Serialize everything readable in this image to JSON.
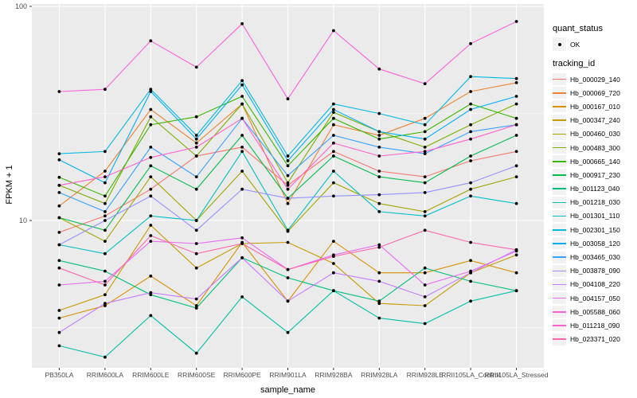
{
  "figure": {
    "background": "#FFFFFF",
    "panel_bg": "#EBEBEB",
    "grid_color": "#FFFFFF",
    "tick_color": "#333333",
    "tick_label_color": "#4D4D4D",
    "legend_key_bg": "#F2F2F2",
    "point_color": "#000000"
  },
  "legend": {
    "quant_status_title": "quant_status",
    "quant_status_items": [
      {
        "label": "OK",
        "shape": "point"
      }
    ],
    "tracking_id_title": "tracking_id"
  },
  "chart_data": {
    "type": "line",
    "title": "",
    "x_axis_label": "sample_name",
    "y_axis_label": "FPKM + 1",
    "y_scale": "log10",
    "y_major_ticks": [
      100,
      10
    ],
    "y_minor_ticks": [
      31.62,
      3.162
    ],
    "y_range_approx": [
      2.05,
      103
    ],
    "grid": true,
    "legend_position": "right",
    "point_marker": {
      "shape": "circle",
      "color": "#000000"
    },
    "categories": [
      "PB350LA",
      "RRIM600LA",
      "RRIM600LE",
      "RRIM600SE",
      "RRIM600PE",
      "RRIM901LA",
      "RRIM928BA",
      "RRIM928LA",
      "RRIM928LE",
      "RRII105LA_Control",
      "RRII105LA_Stressed"
    ],
    "series": [
      {
        "name": "Hb_000029_140",
        "color": "#F8766D",
        "values": [
          8.8,
          10.5,
          14,
          20,
          22,
          14.6,
          21,
          17,
          16,
          19,
          21
        ]
      },
      {
        "name": "Hb_000069_720",
        "color": "#EA8331",
        "values": [
          11.7,
          17,
          33,
          23,
          35,
          12,
          28,
          25,
          30,
          40,
          44
        ]
      },
      {
        "name": "Hb_000167_010",
        "color": "#D89000",
        "values": [
          3.5,
          4.0,
          5.5,
          4.0,
          7.9,
          4.2,
          8.0,
          5.7,
          5.7,
          6.5,
          5.7
        ]
      },
      {
        "name": "Hb_000347_240",
        "color": "#C49A00",
        "values": [
          3.8,
          4.5,
          9.5,
          6.0,
          7.8,
          7.9,
          6.3,
          4.1,
          4.0,
          5.7,
          6.9
        ]
      },
      {
        "name": "Hb_000460_030",
        "color": "#A3A500",
        "values": [
          10.3,
          8.0,
          16,
          10,
          17,
          8.9,
          15,
          12,
          11,
          14,
          16
        ]
      },
      {
        "name": "Hb_000483_300",
        "color": "#7CAE00",
        "values": [
          14.6,
          12,
          30.5,
          20,
          35,
          15,
          32,
          26,
          22,
          28,
          35
        ]
      },
      {
        "name": "Hb_000665_140",
        "color": "#39B600",
        "values": [
          15.9,
          13,
          28,
          30.5,
          38,
          18,
          30,
          24,
          26,
          35,
          30
        ]
      },
      {
        "name": "Hb_000917_230",
        "color": "#00BB4E",
        "values": [
          10.3,
          9.0,
          18,
          14,
          25,
          12.7,
          20,
          16,
          15,
          20,
          25
        ]
      },
      {
        "name": "Hb_001123_040",
        "color": "#00BF7D",
        "values": [
          6.5,
          5.8,
          4.5,
          3.9,
          6.7,
          5.4,
          4.7,
          4.2,
          6.0,
          5.2,
          4.7
        ]
      },
      {
        "name": "Hb_001218_030",
        "color": "#00C1A3",
        "values": [
          2.6,
          2.3,
          3.6,
          2.4,
          4.4,
          3.0,
          4.7,
          3.5,
          3.3,
          4.2,
          4.7
        ]
      },
      {
        "name": "Hb_001301_110",
        "color": "#00BFC4",
        "values": [
          7.7,
          7.0,
          10.5,
          10,
          21,
          9.0,
          17,
          11,
          10.5,
          13,
          12
        ]
      },
      {
        "name": "Hb_002301_150",
        "color": "#00BAE0",
        "values": [
          20.5,
          21,
          41,
          25,
          45,
          20,
          35,
          31.6,
          28,
          47,
          46
        ]
      },
      {
        "name": "Hb_003058_120",
        "color": "#00B0F6",
        "values": [
          19.2,
          15,
          40,
          24,
          43,
          19,
          33,
          26,
          24,
          33,
          38
        ]
      },
      {
        "name": "Hb_003465_030",
        "color": "#35A2FF",
        "values": [
          13.5,
          11,
          22,
          16,
          30,
          16.2,
          25,
          22,
          20.5,
          26,
          28
        ]
      },
      {
        "name": "Hb_003878_090",
        "color": "#9590FF",
        "values": [
          7.7,
          10,
          13,
          9.0,
          14,
          12.7,
          13,
          13.2,
          13.5,
          15,
          18
        ]
      },
      {
        "name": "Hb_004108_220",
        "color": "#C77CFF",
        "values": [
          3.0,
          4.1,
          4.6,
          4.3,
          6.7,
          4.2,
          5.7,
          5.2,
          4.4,
          5.7,
          7.3
        ]
      },
      {
        "name": "Hb_004157_050",
        "color": "#E76BF3",
        "values": [
          5.0,
          5.2,
          8.0,
          7.8,
          8.3,
          5.9,
          6.9,
          7.7,
          5.0,
          5.8,
          7.2
        ]
      },
      {
        "name": "Hb_005588_060",
        "color": "#FA62DB",
        "values": [
          40,
          41,
          69,
          52,
          83,
          37,
          77,
          51,
          43.5,
          67,
          85
        ]
      },
      {
        "name": "Hb_011218_090",
        "color": "#FF61CC",
        "values": [
          14.6,
          16,
          19.7,
          22,
          30,
          14,
          23,
          20,
          21,
          24,
          28
        ]
      },
      {
        "name": "Hb_023371_020",
        "color": "#FF65AC",
        "values": [
          6.0,
          5.0,
          8.5,
          7.0,
          7.8,
          5.9,
          6.8,
          7.5,
          9.0,
          7.9,
          7.3
        ]
      }
    ]
  }
}
